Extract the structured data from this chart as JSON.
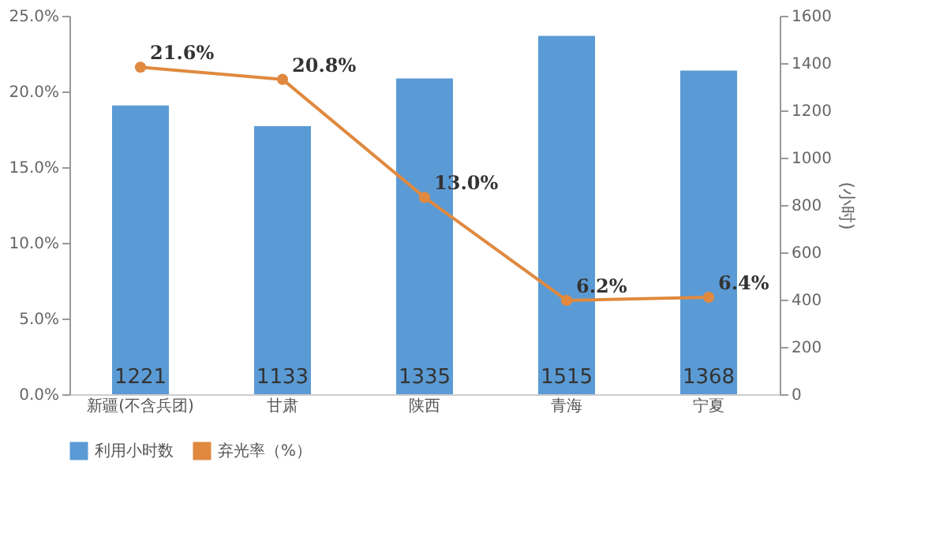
{
  "chart_data": {
    "type": "bar",
    "categories": [
      "新疆(不含兵团)",
      "甘肃",
      "陕西",
      "青海",
      "宁夏"
    ],
    "series": [
      {
        "name": "利用小时数",
        "axis": "y2",
        "color": "#5b9bd5",
        "values": [
          1221,
          1133,
          1335,
          1515,
          1368
        ],
        "value_labels": [
          "1221",
          "1133",
          "1335",
          "1515",
          "1368"
        ]
      },
      {
        "name": "弃光率（%）",
        "type": "line",
        "axis": "y",
        "color": "#e0893f",
        "values": [
          21.6,
          20.8,
          13.0,
          6.2,
          6.4
        ],
        "value_labels": [
          "21.6%",
          "20.8%",
          "13.0%",
          "6.2%",
          "6.4%"
        ],
        "marker": "circle"
      }
    ],
    "ylim": [
      0,
      25
    ],
    "yticks": [
      {
        "value": 0,
        "label": "0.0%"
      },
      {
        "value": 5,
        "label": "5.0%"
      },
      {
        "value": 10,
        "label": "10.0%"
      },
      {
        "value": 15,
        "label": "15.0%"
      },
      {
        "value": 20,
        "label": "20.0%"
      },
      {
        "value": 25,
        "label": "25.0%"
      }
    ],
    "y2lim": [
      0,
      1600
    ],
    "y2ticks": [
      0,
      200,
      400,
      600,
      800,
      1000,
      1200,
      1400,
      1600
    ],
    "y2label": "(小时)",
    "legend": "bottom",
    "grid": false
  }
}
